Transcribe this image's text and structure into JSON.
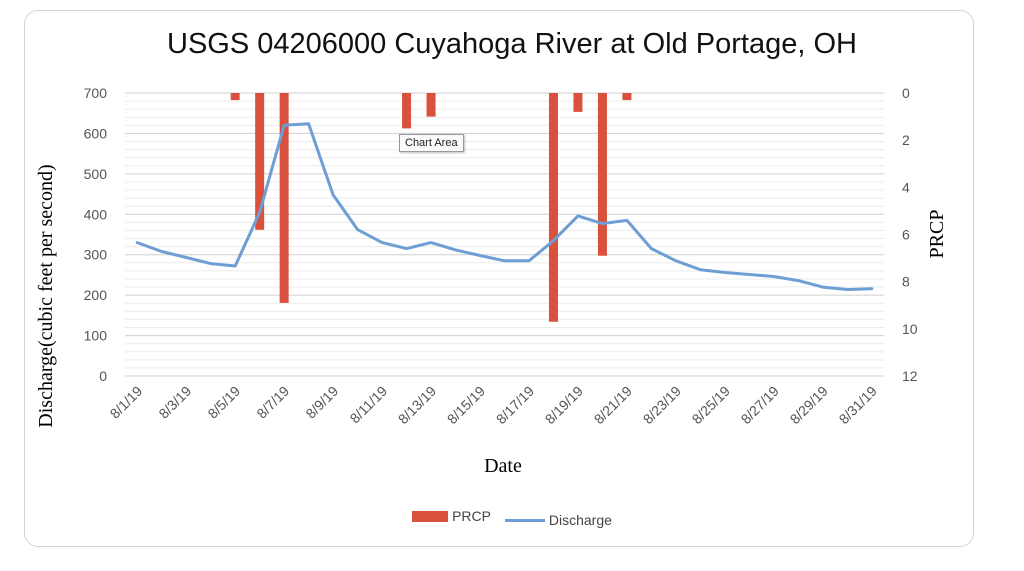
{
  "chart_data": {
    "type": "bar+line",
    "title": "USGS 04206000 Cuyahoga River at Old Portage, OH",
    "xlabel": "Date",
    "ylabel_left": "Discharge(cubic feet per second)",
    "ylabel_right": "PRCP",
    "ylim_left": [
      0,
      700
    ],
    "ylim_right": [
      0,
      12
    ],
    "right_axis_inverted": true,
    "left_ticks": [
      "700",
      "600",
      "500",
      "400",
      "300",
      "200",
      "100",
      "0"
    ],
    "right_ticks": [
      "0",
      "2",
      "4",
      "6",
      "8",
      "10",
      "12"
    ],
    "x_tick_labels": [
      "8/1/19",
      "8/3/19",
      "8/5/19",
      "8/7/19",
      "8/9/19",
      "8/11/19",
      "8/13/19",
      "8/15/19",
      "8/17/19",
      "8/19/19",
      "8/21/19",
      "8/23/19",
      "8/25/19",
      "8/27/19",
      "8/29/19",
      "8/31/19"
    ],
    "dates": [
      "8/1/19",
      "8/2/19",
      "8/3/19",
      "8/4/19",
      "8/5/19",
      "8/6/19",
      "8/7/19",
      "8/8/19",
      "8/9/19",
      "8/10/19",
      "8/11/19",
      "8/12/19",
      "8/13/19",
      "8/14/19",
      "8/15/19",
      "8/16/19",
      "8/17/19",
      "8/18/19",
      "8/19/19",
      "8/20/19",
      "8/21/19",
      "8/22/19",
      "8/23/19",
      "8/24/19",
      "8/25/19",
      "8/26/19",
      "8/27/19",
      "8/28/19",
      "8/29/19",
      "8/30/19",
      "8/31/19"
    ],
    "grid": true,
    "legend_position": "bottom",
    "series": [
      {
        "name": "PRCP",
        "type": "bar",
        "axis": "right",
        "color": "#d9503c",
        "values": [
          0,
          0,
          0,
          0,
          0.3,
          5.8,
          8.9,
          0,
          0,
          0,
          0,
          1.5,
          1.0,
          0,
          0,
          0,
          0,
          9.7,
          0.8,
          6.9,
          0.3,
          0,
          0,
          0,
          0,
          0,
          0,
          0,
          0,
          0,
          0
        ]
      },
      {
        "name": "Discharge",
        "type": "line",
        "axis": "left",
        "color": "#6f9ed4",
        "values": [
          330,
          308,
          293,
          278,
          272,
          405,
          620,
          624,
          448,
          362,
          330,
          315,
          330,
          312,
          298,
          285,
          285,
          335,
          396,
          377,
          385,
          315,
          285,
          263,
          256,
          251,
          246,
          236,
          220,
          214,
          216
        ]
      }
    ]
  },
  "tooltip": "Chart Area"
}
